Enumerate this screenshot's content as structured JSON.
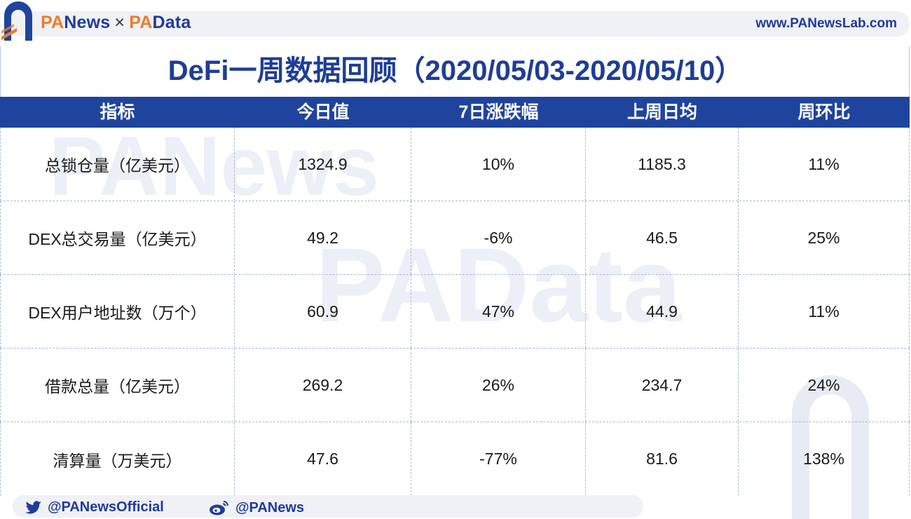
{
  "header": {
    "brand_pa": "PA",
    "brand_news": "News",
    "brand_separator": "×",
    "brand_pa2": "PA",
    "brand_data": "Data",
    "site_url": "www.PANewsLab.com"
  },
  "title": "DeFi一周数据回顾（2020/05/03-2020/05/10）",
  "table": {
    "columns": [
      "指标",
      "今日值",
      "7日涨跌幅",
      "上周日均",
      "周环比"
    ],
    "rows": [
      [
        "总锁仓量（亿美元）",
        "1324.9",
        "10%",
        "1185.3",
        "11%"
      ],
      [
        "DEX总交易量（亿美元）",
        "49.2",
        "-6%",
        "46.5",
        "25%"
      ],
      [
        "DEX用户地址数（万个）",
        "60.9",
        "47%",
        "44.9",
        "11%"
      ],
      [
        "借款总量（亿美元）",
        "269.2",
        "26%",
        "234.7",
        "24%"
      ],
      [
        "清算量（万美元）",
        "47.6",
        "-77%",
        "81.6",
        "138%"
      ]
    ]
  },
  "watermarks": {
    "w1": "PANews",
    "w2": "PAData"
  },
  "footer": {
    "twitter_handle": "@PANewsOfficial",
    "weibo_handle": "@PANews",
    "twitter_icon": "twitter-icon",
    "weibo_icon": "weibo-icon"
  },
  "colors": {
    "brand_blue": "#1f449e",
    "brand_orange": "#ea7d2a"
  }
}
